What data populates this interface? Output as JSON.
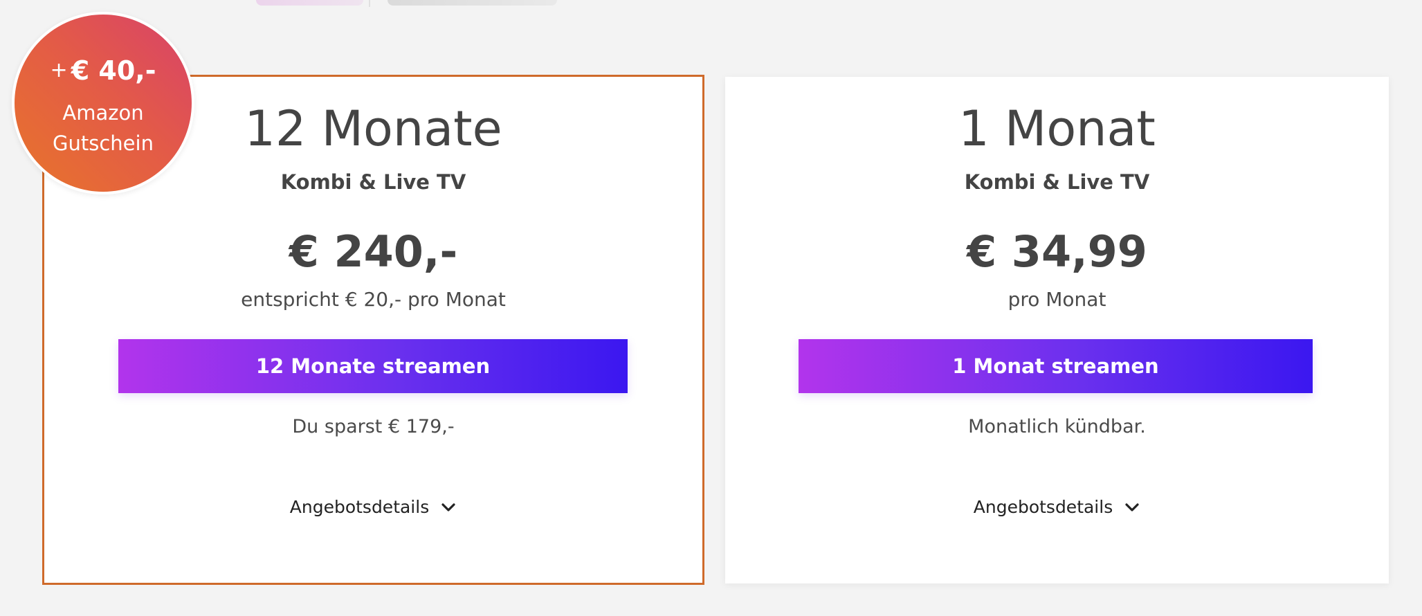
{
  "offers": [
    {
      "duration": "12 Monate",
      "plan": "Kombi & Live TV",
      "price": "€ 240,-",
      "price_note": "entspricht € 20,- pro Monat",
      "cta_label": "12 Monate streamen",
      "sub_note": "Du sparst € 179,-",
      "details_label": "Angebotsdetails",
      "border_color": "#cf6a2a"
    },
    {
      "duration": "1 Monat",
      "plan": "Kombi & Live TV",
      "price": "€ 34,99",
      "price_note": "pro Monat",
      "cta_label": "1 Monat streamen",
      "sub_note": "Monatlich kündbar.",
      "details_label": "Angebotsdetails"
    }
  ],
  "badge": {
    "plus": "+",
    "value": "€ 40,-",
    "line1": "Amazon",
    "line2": "Gutschein",
    "gradient_colors": [
      "#e8752a",
      "#e35a48",
      "#d8426a"
    ]
  },
  "colors": {
    "cta_gradient": [
      "#b234ec",
      "#6a30ee",
      "#3b17f0"
    ],
    "background": "#f3f3f3",
    "card": "#ffffff"
  },
  "icons": {
    "details_toggle": "chevron-down-icon"
  }
}
